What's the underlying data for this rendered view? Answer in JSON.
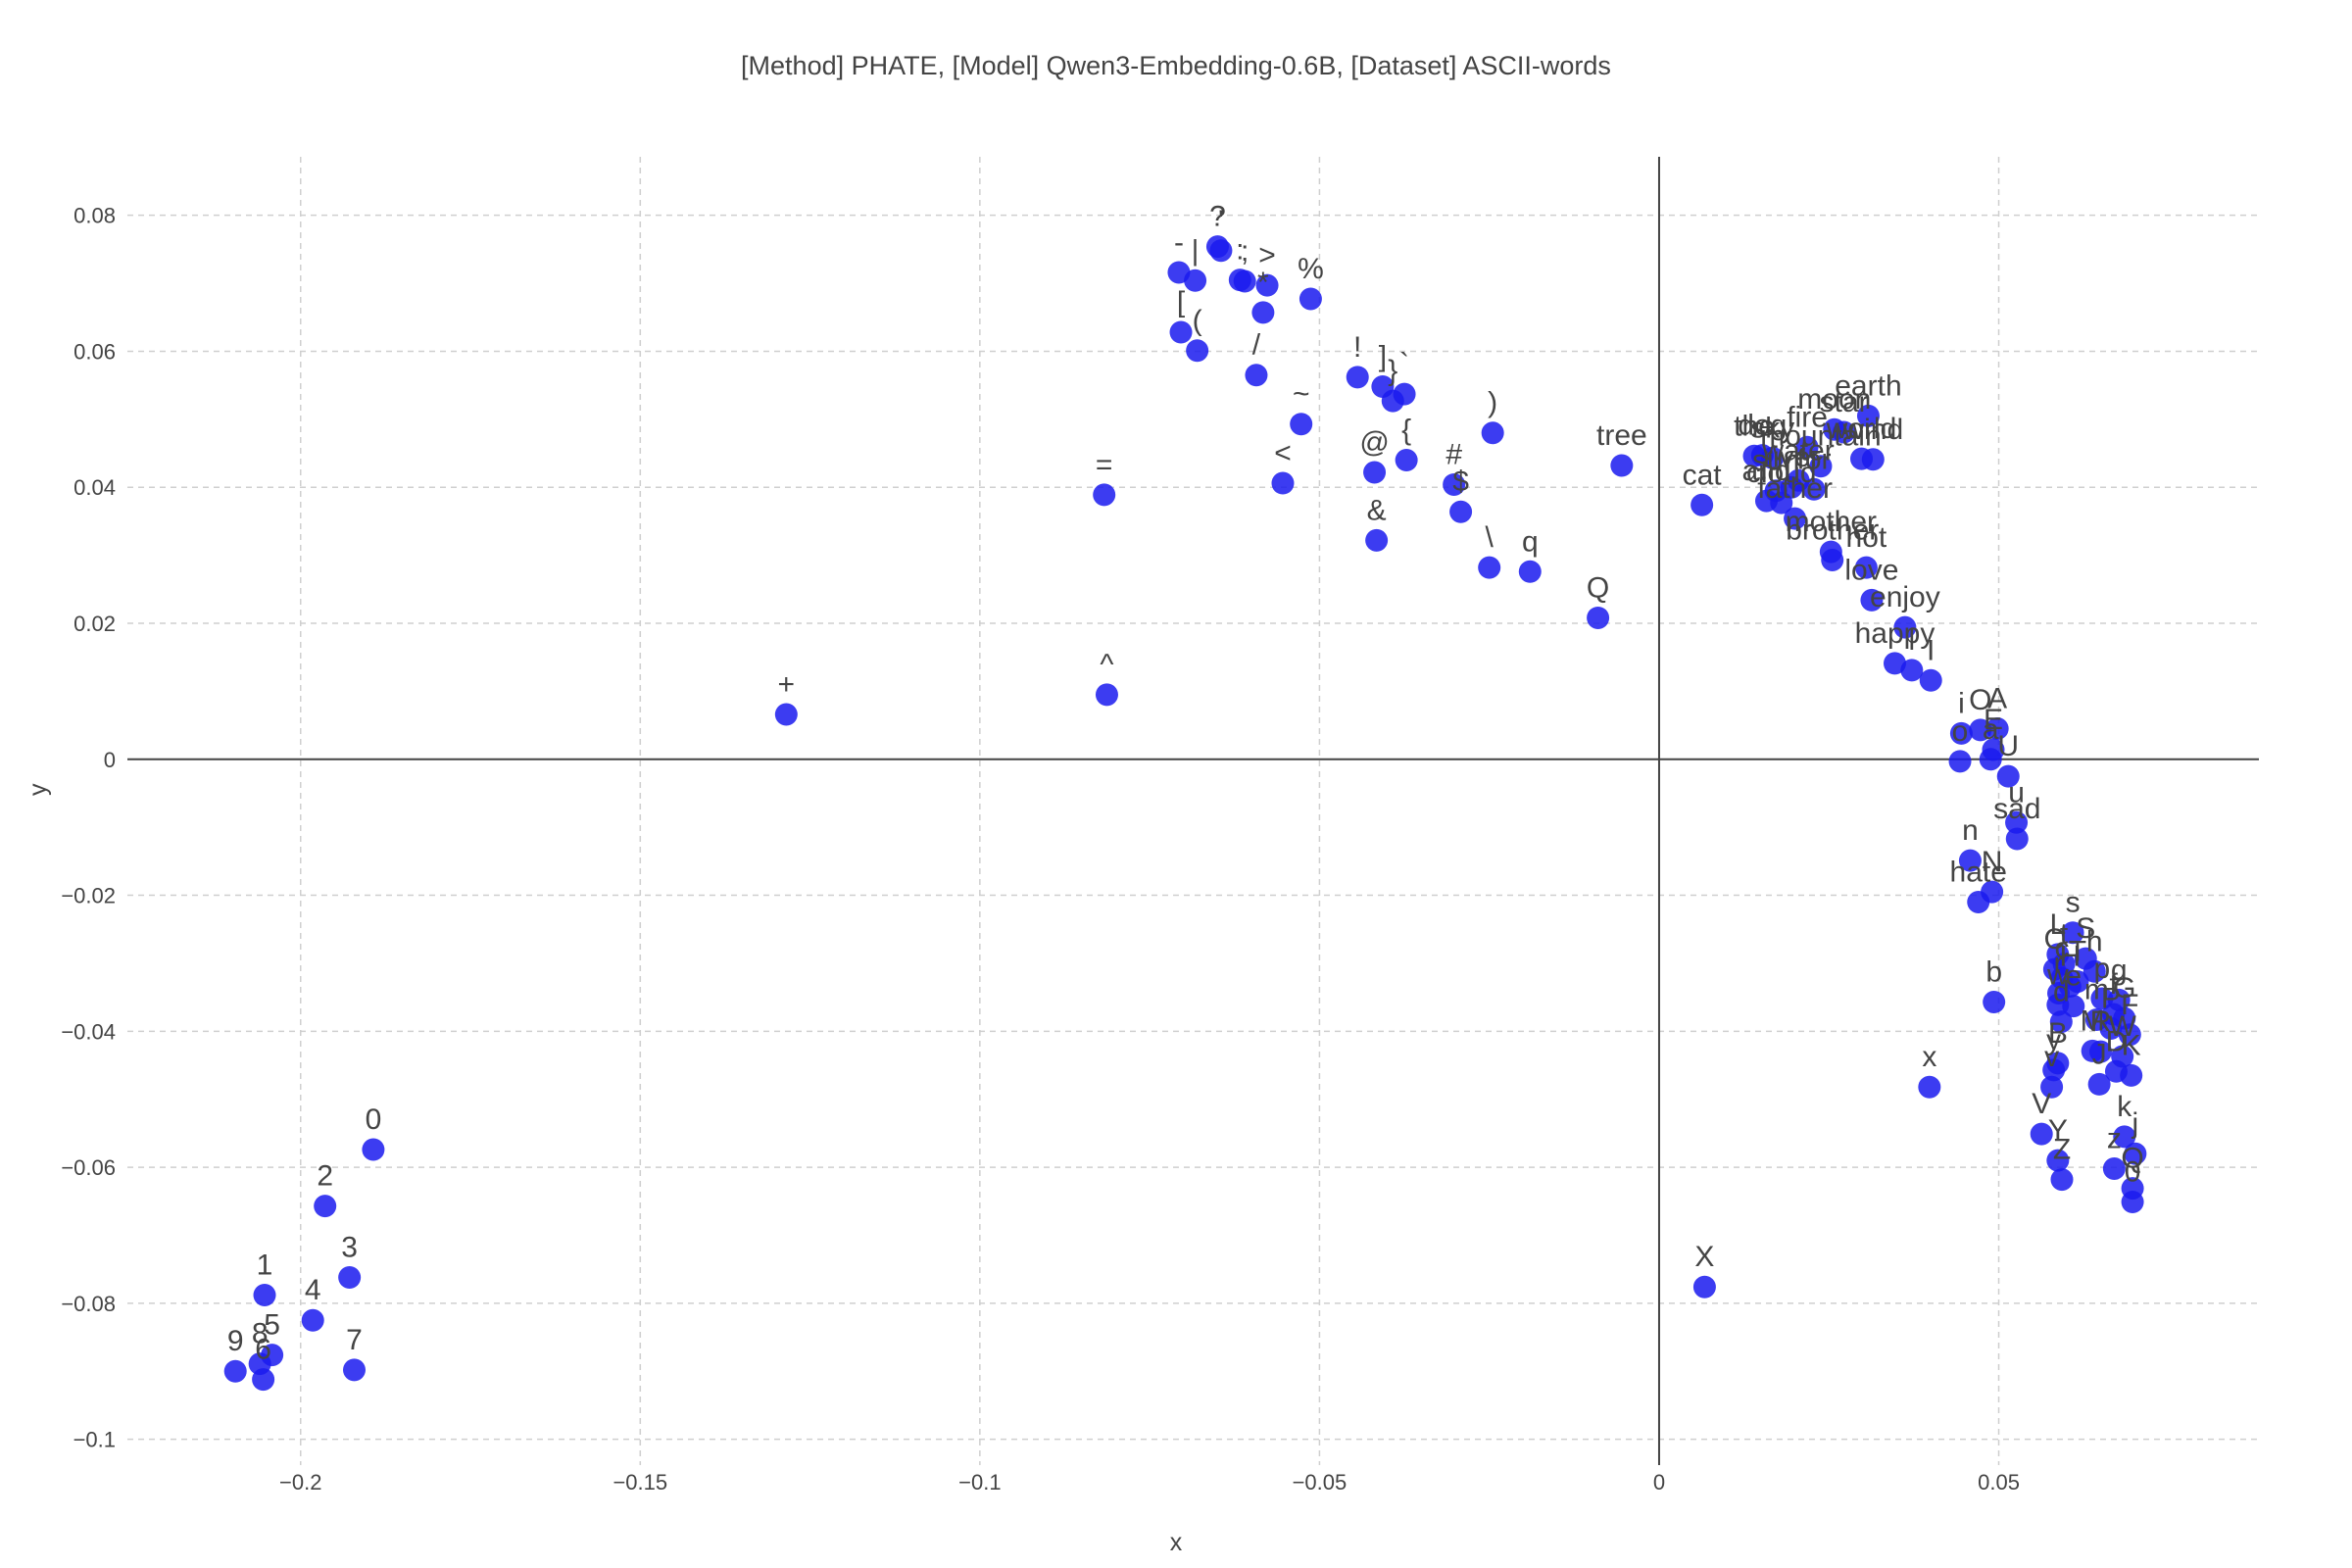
{
  "chart_data": {
    "type": "scatter",
    "title": "[Method] PHATE, [Model] Qwen3-Embedding-0.6B, [Dataset] ASCII-words",
    "xlabel": "x",
    "ylabel": "y",
    "xlim": [
      -0.2255,
      0.0883
    ],
    "ylim": [
      -0.1038,
      0.0886
    ],
    "grid": true,
    "marker_color": "#1a1aee",
    "x_ticks": [
      {
        "v": -0.2,
        "label": "−0.2"
      },
      {
        "v": -0.15,
        "label": "−0.15"
      },
      {
        "v": -0.1,
        "label": "−0.1"
      },
      {
        "v": -0.05,
        "label": "−0.05"
      },
      {
        "v": 0,
        "label": "0"
      },
      {
        "v": 0.05,
        "label": "0.05"
      }
    ],
    "y_ticks": [
      {
        "v": -0.1,
        "label": "−0.1"
      },
      {
        "v": -0.08,
        "label": "−0.08"
      },
      {
        "v": -0.06,
        "label": "−0.06"
      },
      {
        "v": -0.04,
        "label": "−0.04"
      },
      {
        "v": -0.02,
        "label": "−0.02"
      },
      {
        "v": 0,
        "label": "0"
      },
      {
        "v": 0.02,
        "label": "0.02"
      },
      {
        "v": 0.04,
        "label": "0.04"
      },
      {
        "v": 0.06,
        "label": "0.06"
      },
      {
        "v": 0.08,
        "label": "0.08"
      }
    ],
    "points": [
      {
        "label": "0",
        "x": -0.1893,
        "y": -0.0574
      },
      {
        "label": "2",
        "x": -0.1964,
        "y": -0.0657
      },
      {
        "label": "3",
        "x": -0.1928,
        "y": -0.0762
      },
      {
        "label": "1",
        "x": -0.2053,
        "y": -0.0788
      },
      {
        "label": "4",
        "x": -0.1982,
        "y": -0.0825
      },
      {
        "label": "5",
        "x": -0.2042,
        "y": -0.0876
      },
      {
        "label": "8",
        "x": -0.206,
        "y": -0.0889
      },
      {
        "label": "6",
        "x": -0.2055,
        "y": -0.0912
      },
      {
        "label": "9",
        "x": -0.2096,
        "y": -0.09
      },
      {
        "label": "7",
        "x": -0.1921,
        "y": -0.0898
      },
      {
        "label": "+",
        "x": -0.1285,
        "y": 0.0066
      },
      {
        "label": "^",
        "x": -0.0813,
        "y": 0.0095
      },
      {
        "label": "=",
        "x": -0.0817,
        "y": 0.0389
      },
      {
        "label": "?",
        "x": -0.065,
        "y": 0.0754
      },
      {
        "label": "-",
        "x": -0.0707,
        "y": 0.0716
      },
      {
        "label": "|",
        "x": -0.0683,
        "y": 0.0704
      },
      {
        "label": "'",
        "x": -0.0645,
        "y": 0.0748
      },
      {
        "label": ":",
        "x": -0.0617,
        "y": 0.0705
      },
      {
        "label": ";",
        "x": -0.061,
        "y": 0.0703
      },
      {
        "label": ">",
        "x": -0.0577,
        "y": 0.0697
      },
      {
        "label": "*",
        "x": -0.0583,
        "y": 0.0657
      },
      {
        "label": "%",
        "x": -0.0513,
        "y": 0.0677
      },
      {
        "label": "[",
        "x": -0.0704,
        "y": 0.0628
      },
      {
        "label": "(",
        "x": -0.068,
        "y": 0.0601
      },
      {
        "label": "/",
        "x": -0.0593,
        "y": 0.0565
      },
      {
        "label": "~",
        "x": -0.0527,
        "y": 0.0493
      },
      {
        "label": "<",
        "x": -0.0554,
        "y": 0.0406
      },
      {
        "label": "!",
        "x": -0.0444,
        "y": 0.0562
      },
      {
        "label": "]",
        "x": -0.0407,
        "y": 0.0548
      },
      {
        "label": "}",
        "x": -0.0392,
        "y": 0.0527
      },
      {
        "label": "`",
        "x": -0.0375,
        "y": 0.0537
      },
      {
        "label": "{",
        "x": -0.0372,
        "y": 0.044
      },
      {
        "label": "@",
        "x": -0.0419,
        "y": 0.0422
      },
      {
        "label": "&",
        "x": -0.0416,
        "y": 0.0322
      },
      {
        "label": "#",
        "x": -0.0302,
        "y": 0.0404
      },
      {
        "label": "$",
        "x": -0.0292,
        "y": 0.0364
      },
      {
        "label": ")",
        "x": -0.0245,
        "y": 0.048
      },
      {
        "label": "\\",
        "x": -0.025,
        "y": 0.0282
      },
      {
        "label": "q",
        "x": -0.019,
        "y": 0.0276
      },
      {
        "label": "Q",
        "x": -0.009,
        "y": 0.0208
      },
      {
        "label": "tree",
        "x": -0.0055,
        "y": 0.0432
      },
      {
        "label": "cat",
        "x": 0.0063,
        "y": 0.0374
      },
      {
        "label": "X",
        "x": 0.0067,
        "y": -0.0776
      },
      {
        "label": "the",
        "x": 0.014,
        "y": 0.0446
      },
      {
        "label": "dog",
        "x": 0.0152,
        "y": 0.0447
      },
      {
        "label": "sky",
        "x": 0.0167,
        "y": 0.0443
      },
      {
        "label": "and",
        "x": 0.0158,
        "y": 0.038
      },
      {
        "label": "sun",
        "x": 0.0172,
        "y": 0.0395
      },
      {
        "label": "cloud",
        "x": 0.018,
        "y": 0.0377
      },
      {
        "label": "water",
        "x": 0.0205,
        "y": 0.041
      },
      {
        "label": "fire",
        "x": 0.0218,
        "y": 0.0459
      },
      {
        "label": "mountain",
        "x": 0.0238,
        "y": 0.0431
      },
      {
        "label": "river",
        "x": 0.0195,
        "y": 0.04
      },
      {
        "label": "for",
        "x": 0.0228,
        "y": 0.0397
      },
      {
        "label": "father",
        "x": 0.02,
        "y": 0.0354
      },
      {
        "label": "moon",
        "x": 0.0258,
        "y": 0.0485
      },
      {
        "label": "earth",
        "x": 0.0308,
        "y": 0.0505
      },
      {
        "label": "star",
        "x": 0.0272,
        "y": 0.0481
      },
      {
        "label": "world",
        "x": 0.0298,
        "y": 0.0442
      },
      {
        "label": "wind",
        "x": 0.0315,
        "y": 0.0441
      },
      {
        "label": "mother",
        "x": 0.0253,
        "y": 0.0305
      },
      {
        "label": "brother",
        "x": 0.0255,
        "y": 0.0293
      },
      {
        "label": "not",
        "x": 0.0305,
        "y": 0.0282
      },
      {
        "label": "love",
        "x": 0.0313,
        "y": 0.0234
      },
      {
        "label": "enjoy",
        "x": 0.0362,
        "y": 0.0194
      },
      {
        "label": "happy",
        "x": 0.0347,
        "y": 0.0141
      },
      {
        "label": "l",
        "x": 0.0372,
        "y": 0.0131
      },
      {
        "label": "I",
        "x": 0.04,
        "y": 0.0116
      },
      {
        "label": "i",
        "x": 0.0445,
        "y": 0.0038
      },
      {
        "label": "O",
        "x": 0.0473,
        "y": 0.0043
      },
      {
        "label": "A",
        "x": 0.0498,
        "y": 0.0045
      },
      {
        "label": "E",
        "x": 0.0492,
        "y": 0.0014
      },
      {
        "label": "a",
        "x": 0.0488,
        "y": 0.0
      },
      {
        "label": "o",
        "x": 0.0443,
        "y": -0.0003
      },
      {
        "label": "U",
        "x": 0.0514,
        "y": -0.0025
      },
      {
        "label": "u",
        "x": 0.0526,
        "y": -0.0093
      },
      {
        "label": "sad",
        "x": 0.0527,
        "y": -0.0117
      },
      {
        "label": "n",
        "x": 0.0458,
        "y": -0.0149
      },
      {
        "label": "N",
        "x": 0.049,
        "y": -0.0195
      },
      {
        "label": "hate",
        "x": 0.047,
        "y": -0.021
      },
      {
        "label": "b",
        "x": 0.0493,
        "y": -0.0357
      },
      {
        "label": "x",
        "x": 0.0398,
        "y": -0.0482
      },
      {
        "label": "s",
        "x": 0.0609,
        "y": -0.0255
      },
      {
        "label": "L",
        "x": 0.0587,
        "y": -0.0287
      },
      {
        "label": "S",
        "x": 0.0628,
        "y": -0.0293
      },
      {
        "label": "t",
        "x": 0.0596,
        "y": -0.0301
      },
      {
        "label": "h",
        "x": 0.0641,
        "y": -0.0312
      },
      {
        "label": "C",
        "x": 0.0582,
        "y": -0.0309
      },
      {
        "label": "c",
        "x": 0.0593,
        "y": -0.0322
      },
      {
        "label": "H",
        "x": 0.0605,
        "y": -0.0334
      },
      {
        "label": "r",
        "x": 0.0588,
        "y": -0.0344
      },
      {
        "label": "T",
        "x": 0.0616,
        "y": -0.0327
      },
      {
        "label": "p",
        "x": 0.0652,
        "y": -0.0352
      },
      {
        "label": "g",
        "x": 0.0677,
        "y": -0.0354
      },
      {
        "label": "w",
        "x": 0.0587,
        "y": -0.0361
      },
      {
        "label": "e",
        "x": 0.061,
        "y": -0.0363
      },
      {
        "label": "f",
        "x": 0.0669,
        "y": -0.0375
      },
      {
        "label": "G",
        "x": 0.0685,
        "y": -0.0381
      },
      {
        "label": "m",
        "x": 0.0644,
        "y": -0.0383
      },
      {
        "label": "d",
        "x": 0.0592,
        "y": -0.0386
      },
      {
        "label": "P",
        "x": 0.0665,
        "y": -0.0396
      },
      {
        "label": "F",
        "x": 0.0693,
        "y": -0.0405
      },
      {
        "label": "M",
        "x": 0.0638,
        "y": -0.0429
      },
      {
        "label": "B",
        "x": 0.0587,
        "y": -0.0447
      },
      {
        "label": "R",
        "x": 0.065,
        "y": -0.043
      },
      {
        "label": "W",
        "x": 0.0682,
        "y": -0.0437
      },
      {
        "label": "D",
        "x": 0.0673,
        "y": -0.0459
      },
      {
        "label": "K",
        "x": 0.0695,
        "y": -0.0465
      },
      {
        "label": "y",
        "x": 0.0581,
        "y": -0.0457
      },
      {
        "label": "J",
        "x": 0.0648,
        "y": -0.0478
      },
      {
        "label": "V",
        "x": 0.0563,
        "y": -0.0551
      },
      {
        "label": "v",
        "x": 0.0578,
        "y": -0.0482
      },
      {
        "label": "k",
        "x": 0.0685,
        "y": -0.0555
      },
      {
        "label": "j",
        "x": 0.0701,
        "y": -0.058
      },
      {
        "label": "Y",
        "x": 0.0587,
        "y": -0.059
      },
      {
        "label": "Z",
        "x": 0.0593,
        "y": -0.0618
      },
      {
        "label": "z",
        "x": 0.067,
        "y": -0.0602
      },
      {
        "label": "Q",
        "x": 0.0697,
        "y": -0.0631
      },
      {
        "label": "0",
        "x": 0.0697,
        "y": -0.0651
      }
    ]
  }
}
